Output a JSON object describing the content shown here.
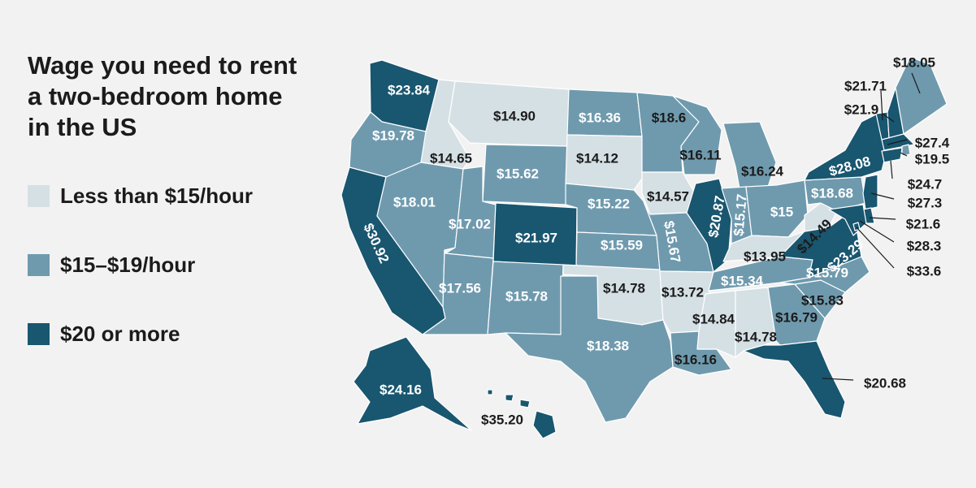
{
  "title": "Wage you need to rent a two-bedroom home in the US",
  "legend": [
    {
      "label": "Less than $15/hour",
      "color": "#d5e0e5"
    },
    {
      "label": "$15–$19/hour",
      "color": "#6f9aae"
    },
    {
      "label": "$20 or more",
      "color": "#19566f"
    }
  ],
  "colors": {
    "background": "#f2f2f2",
    "border": "#ffffff",
    "text_dark": "#1b1b1b"
  },
  "states": [
    {
      "state": "Washington",
      "value": "$23.84",
      "tier": 2
    },
    {
      "state": "Oregon",
      "value": "$19.78",
      "tier": 1
    },
    {
      "state": "California",
      "value": "$30.92",
      "tier": 2
    },
    {
      "state": "Idaho",
      "value": "$14.65",
      "tier": 0
    },
    {
      "state": "Nevada",
      "value": "$18.01",
      "tier": 1
    },
    {
      "state": "Montana",
      "value": "$14.90",
      "tier": 0
    },
    {
      "state": "Wyoming",
      "value": "$15.62",
      "tier": 1
    },
    {
      "state": "Utah",
      "value": "$17.02",
      "tier": 1
    },
    {
      "state": "Arizona",
      "value": "$17.56",
      "tier": 1
    },
    {
      "state": "Colorado",
      "value": "$21.97",
      "tier": 2
    },
    {
      "state": "New Mexico",
      "value": "$15.78",
      "tier": 1
    },
    {
      "state": "North Dakota",
      "value": "$16.36",
      "tier": 1
    },
    {
      "state": "South Dakota",
      "value": "$14.12",
      "tier": 0
    },
    {
      "state": "Nebraska",
      "value": "$15.22",
      "tier": 1
    },
    {
      "state": "Kansas",
      "value": "$15.59",
      "tier": 1
    },
    {
      "state": "Oklahoma",
      "value": "$14.78",
      "tier": 0
    },
    {
      "state": "Texas",
      "value": "$18.38",
      "tier": 1
    },
    {
      "state": "Minnesota",
      "value": "$18.6",
      "tier": 1
    },
    {
      "state": "Iowa",
      "value": "$14.57",
      "tier": 0
    },
    {
      "state": "Missouri",
      "value": "$15.67",
      "tier": 1
    },
    {
      "state": "Arkansas",
      "value": "$13.72",
      "tier": 0
    },
    {
      "state": "Louisiana",
      "value": "$16.16",
      "tier": 1
    },
    {
      "state": "Wisconsin",
      "value": "$16.11",
      "tier": 1
    },
    {
      "state": "Illinois",
      "value": "$20.87",
      "tier": 2
    },
    {
      "state": "Michigan",
      "value": "$16.24",
      "tier": 1
    },
    {
      "state": "Indiana",
      "value": "$15.17",
      "tier": 1
    },
    {
      "state": "Ohio",
      "value": "$15",
      "tier": 1
    },
    {
      "state": "Kentucky",
      "value": "$13.95",
      "tier": 0
    },
    {
      "state": "Tennessee",
      "value": "$15.34",
      "tier": 1
    },
    {
      "state": "Mississippi",
      "value": "$14.84",
      "tier": 0
    },
    {
      "state": "Alabama",
      "value": "$14.78",
      "tier": 0
    },
    {
      "state": "Georgia",
      "value": "$16.79",
      "tier": 1
    },
    {
      "state": "Florida",
      "value": "$20.68",
      "tier": 2
    },
    {
      "state": "South Carolina",
      "value": "$15.83",
      "tier": 1
    },
    {
      "state": "North Carolina",
      "value": "$15.79",
      "tier": 1
    },
    {
      "state": "Virginia",
      "value": "$23.29",
      "tier": 2
    },
    {
      "state": "West Virginia",
      "value": "$14.49",
      "tier": 0
    },
    {
      "state": "Pennsylvania",
      "value": "$18.68",
      "tier": 1
    },
    {
      "state": "New York",
      "value": "$28.08",
      "tier": 2
    },
    {
      "state": "Vermont",
      "value": "$21.71",
      "tier": 2
    },
    {
      "state": "New Hampshire",
      "value": "$21.9",
      "tier": 2
    },
    {
      "state": "Maine",
      "value": "$18.05",
      "tier": 1
    },
    {
      "state": "Massachusetts",
      "value": "$27.4",
      "tier": 2
    },
    {
      "state": "Rhode Island",
      "value": "$19.5",
      "tier": 1
    },
    {
      "state": "Connecticut",
      "value": "$24.7",
      "tier": 2
    },
    {
      "state": "New Jersey",
      "value": "$27.3",
      "tier": 2
    },
    {
      "state": "Delaware",
      "value": "$21.6",
      "tier": 2
    },
    {
      "state": "Maryland",
      "value": "$28.3",
      "tier": 2
    },
    {
      "state": "District of Columbia",
      "value": "$33.6",
      "tier": 2
    },
    {
      "state": "Alaska",
      "value": "$24.16",
      "tier": 2
    },
    {
      "state": "Hawaii",
      "value": "$35.20",
      "tier": 2
    }
  ]
}
